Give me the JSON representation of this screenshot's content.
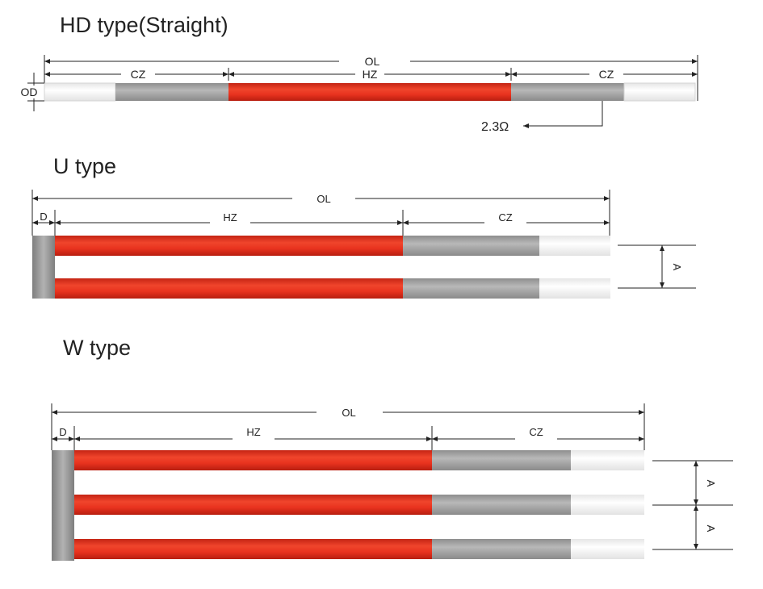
{
  "colors": {
    "hot_zone": "#e8321e",
    "cold_zone": "#a6a6a6",
    "terminal": "#f7f7f7",
    "connector": "#999999",
    "line": "#222222"
  },
  "hd": {
    "title": "HD type(Straight)",
    "ol": "OL",
    "hz": "HZ",
    "cz_left": "CZ",
    "cz_right": "CZ",
    "od": "OD",
    "resistance": "2.3Ω"
  },
  "u": {
    "title": "U  type",
    "ol": "OL",
    "d": "D",
    "hz": "HZ",
    "cz": "CZ",
    "a": "A"
  },
  "w": {
    "title": "W  type",
    "ol": "OL",
    "d": "D",
    "hz": "HZ",
    "cz": "CZ",
    "a1": "A",
    "a2": "A"
  }
}
